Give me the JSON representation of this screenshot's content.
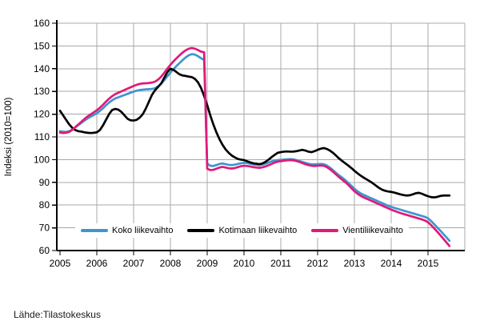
{
  "source": "Lähde:Tilastokeskus",
  "y_axis": {
    "title": "Indeksi (2010=100)",
    "ticks": [
      60,
      70,
      80,
      90,
      100,
      110,
      120,
      130,
      140,
      150,
      160
    ],
    "min": 60,
    "max": 160
  },
  "x_axis": {
    "years": [
      "2005",
      "2006",
      "2007",
      "2008",
      "2009",
      "2010",
      "2011",
      "2012",
      "2013",
      "2014",
      "2015"
    ]
  },
  "legend": {
    "items": [
      {
        "label": "Koko liikevaihto",
        "color": "#3e95d0"
      },
      {
        "label": "Kotimaan liikevaihto",
        "color": "#000000"
      },
      {
        "label": "Vientiliikevaihto",
        "color": "#e01978"
      }
    ]
  },
  "colors": {
    "grid": "#a8a8a8",
    "axis": "#000000",
    "background": "#ffffff"
  },
  "chart_data": {
    "type": "line",
    "title": "",
    "xlabel": "",
    "ylabel": "Indeksi (2010=100)",
    "ylim": [
      60,
      160
    ],
    "y_tick_step": 10,
    "grid": true,
    "legend_position": "bottom-inside",
    "frequency": "monthly",
    "x_start": "2005-01",
    "x_end": "2015-08",
    "x_tick_labels": [
      "2005",
      "2006",
      "2007",
      "2008",
      "2009",
      "2010",
      "2011",
      "2012",
      "2013",
      "2014",
      "2015"
    ],
    "series": [
      {
        "name": "Koko liikevaihto",
        "color": "#3e95d0",
        "values": [
          112.5,
          112.3,
          112.2,
          112.5,
          113.2,
          114.2,
          115.2,
          116.2,
          117.2,
          118.1,
          118.9,
          119.6,
          120.4,
          121.4,
          122.6,
          123.9,
          125.1,
          126.1,
          126.9,
          127.4,
          127.9,
          128.4,
          128.9,
          129.4,
          129.9,
          130.3,
          130.6,
          130.8,
          130.9,
          131.0,
          131.1,
          131.4,
          132.2,
          133.4,
          134.9,
          136.6,
          138.3,
          139.8,
          141.2,
          142.5,
          143.8,
          145.0,
          145.9,
          146.4,
          146.2,
          145.5,
          144.6,
          143.8,
          98.3,
          97.3,
          97.2,
          97.6,
          98.1,
          98.3,
          98.0,
          97.7,
          97.6,
          97.8,
          98.1,
          98.4,
          98.6,
          98.5,
          98.2,
          97.9,
          97.7,
          97.6,
          97.8,
          98.2,
          98.7,
          99.2,
          99.6,
          99.8,
          99.9,
          100.0,
          100.1,
          100.2,
          100.1,
          99.8,
          99.4,
          99.0,
          98.6,
          98.2,
          97.9,
          97.9,
          98.0,
          98.1,
          98.0,
          97.4,
          96.5,
          95.4,
          94.2,
          93.1,
          92.1,
          91.0,
          89.8,
          88.5,
          87.2,
          86.1,
          85.2,
          84.5,
          83.9,
          83.3,
          82.7,
          82.1,
          81.5,
          80.9,
          80.3,
          79.7,
          79.2,
          78.8,
          78.4,
          78.0,
          77.6,
          77.2,
          76.8,
          76.4,
          76.0,
          75.6,
          75.2,
          74.8,
          74.2,
          73.0,
          71.6,
          70.2,
          68.8,
          67.3,
          65.8,
          64.3
        ]
      },
      {
        "name": "Kotimaan liikevaihto",
        "color": "#000000",
        "values": [
          121.5,
          119.5,
          117.5,
          115.5,
          114.0,
          113.0,
          112.5,
          112.3,
          112.0,
          111.8,
          111.7,
          111.8,
          112.0,
          113.0,
          115.0,
          117.5,
          120.0,
          121.8,
          122.3,
          122.0,
          121.0,
          119.5,
          118.0,
          117.3,
          117.2,
          117.5,
          118.5,
          120.0,
          122.5,
          125.5,
          128.5,
          130.5,
          132.0,
          133.5,
          136.0,
          138.5,
          140.0,
          139.5,
          138.5,
          137.5,
          137.0,
          136.8,
          136.5,
          136.3,
          135.5,
          134.0,
          131.5,
          128.0,
          124.0,
          119.5,
          115.5,
          112.0,
          109.0,
          106.5,
          104.5,
          103.0,
          101.8,
          101.0,
          100.3,
          100.0,
          99.8,
          99.3,
          98.8,
          98.4,
          98.2,
          98.0,
          98.3,
          99.0,
          100.0,
          101.1,
          102.1,
          103.0,
          103.3,
          103.5,
          103.6,
          103.5,
          103.5,
          103.7,
          104.0,
          104.3,
          104.0,
          103.5,
          103.3,
          103.7,
          104.3,
          104.8,
          105.1,
          104.7,
          104.0,
          103.0,
          101.8,
          100.5,
          99.4,
          98.4,
          97.4,
          96.3,
          95.1,
          94.0,
          93.0,
          92.1,
          91.3,
          90.5,
          89.6,
          88.6,
          87.6,
          86.8,
          86.3,
          86.0,
          85.8,
          85.5,
          85.1,
          84.7,
          84.4,
          84.2,
          84.3,
          84.7,
          85.2,
          85.4,
          85.0,
          84.4,
          83.9,
          83.5,
          83.4,
          83.6,
          84.0,
          84.2,
          84.2,
          84.2
        ]
      },
      {
        "name": "Vientiliikevaihto",
        "color": "#e01978",
        "values": [
          111.9,
          111.7,
          111.8,
          112.2,
          113.1,
          114.3,
          115.5,
          116.7,
          117.9,
          119.0,
          119.9,
          120.8,
          121.7,
          122.8,
          124.1,
          125.5,
          126.8,
          127.9,
          128.8,
          129.4,
          130.0,
          130.6,
          131.2,
          131.8,
          132.4,
          132.9,
          133.3,
          133.5,
          133.6,
          133.7,
          133.9,
          134.3,
          135.2,
          136.5,
          138.2,
          140.0,
          141.7,
          143.2,
          144.6,
          145.9,
          147.1,
          148.1,
          148.8,
          149.1,
          148.8,
          148.2,
          147.5,
          147.2,
          96.0,
          95.4,
          95.5,
          96.0,
          96.5,
          96.8,
          96.5,
          96.2,
          96.1,
          96.3,
          96.7,
          97.1,
          97.3,
          97.2,
          97.0,
          96.7,
          96.5,
          96.4,
          96.6,
          97.0,
          97.5,
          98.1,
          98.7,
          99.1,
          99.3,
          99.5,
          99.7,
          99.8,
          99.7,
          99.4,
          99.0,
          98.5,
          98.0,
          97.6,
          97.3,
          97.2,
          97.3,
          97.4,
          97.3,
          96.7,
          95.8,
          94.7,
          93.5,
          92.3,
          91.2,
          90.1,
          88.9,
          87.5,
          86.1,
          85.0,
          84.1,
          83.4,
          82.8,
          82.2,
          81.6,
          81.0,
          80.4,
          79.8,
          79.2,
          78.6,
          78.0,
          77.5,
          77.0,
          76.5,
          76.1,
          75.7,
          75.3,
          74.9,
          74.5,
          74.1,
          73.7,
          73.2,
          72.5,
          71.2,
          69.8,
          68.3,
          66.8,
          65.2,
          63.6,
          62.0
        ]
      }
    ]
  }
}
